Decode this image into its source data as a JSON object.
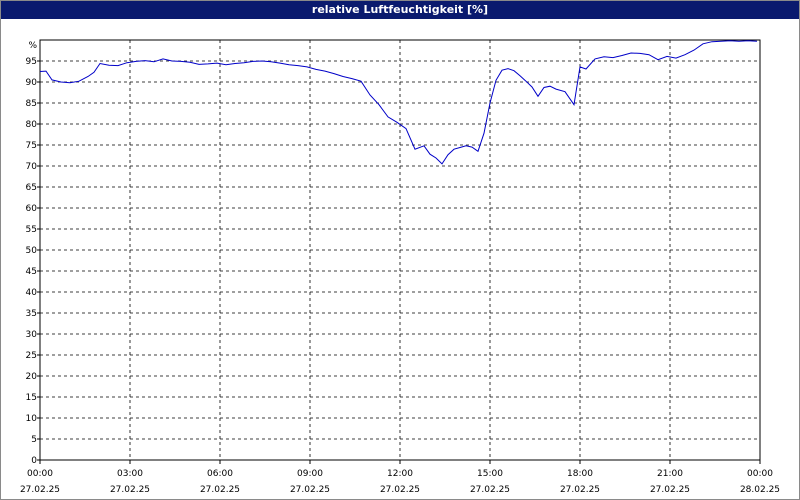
{
  "window": {
    "title": "relative Luftfeuchtigkeit [%]"
  },
  "chart_data": {
    "type": "line",
    "title": "relative Luftfeuchtigkeit [%]",
    "ylabel": "%",
    "ylim": [
      0,
      100
    ],
    "xlim_hours": [
      0,
      24
    ],
    "y_ticks": [
      0,
      5,
      10,
      15,
      20,
      25,
      30,
      35,
      40,
      45,
      50,
      55,
      60,
      65,
      70,
      75,
      80,
      85,
      90,
      95
    ],
    "x_ticks": [
      {
        "hour": 0,
        "time": "00:00",
        "date": "27.02.25"
      },
      {
        "hour": 3,
        "time": "03:00",
        "date": "27.02.25"
      },
      {
        "hour": 6,
        "time": "06:00",
        "date": "27.02.25"
      },
      {
        "hour": 9,
        "time": "09:00",
        "date": "27.02.25"
      },
      {
        "hour": 12,
        "time": "12:00",
        "date": "27.02.25"
      },
      {
        "hour": 15,
        "time": "15:00",
        "date": "27.02.25"
      },
      {
        "hour": 18,
        "time": "18:00",
        "date": "27.02.25"
      },
      {
        "hour": 21,
        "time": "21:00",
        "date": "27.02.25"
      },
      {
        "hour": 24,
        "time": "00:00",
        "date": "28.02.25"
      }
    ],
    "grid": true,
    "line_color": "#0000c8",
    "series": [
      {
        "x": [
          0.0,
          0.2,
          0.4,
          0.7,
          1.0,
          1.3,
          1.6,
          1.8,
          2.0,
          2.3,
          2.6,
          2.9,
          3.2,
          3.5,
          3.8,
          4.1,
          4.4,
          4.7,
          5.0,
          5.3,
          5.6,
          5.9,
          6.2,
          6.5,
          6.8,
          7.1,
          7.4,
          7.7,
          8.0,
          8.3,
          8.6,
          8.9,
          9.2,
          9.5,
          9.8,
          10.1,
          10.4,
          10.7,
          11.0,
          11.3,
          11.6,
          11.9,
          12.2,
          12.5,
          12.8,
          13.0,
          13.2,
          13.4,
          13.6,
          13.8,
          14.0,
          14.2,
          14.4,
          14.6,
          14.8,
          15.0,
          15.2,
          15.4,
          15.6,
          15.8,
          16.0,
          16.2,
          16.4,
          16.6,
          16.8,
          17.0,
          17.2,
          17.5,
          17.8,
          18.0,
          18.2,
          18.5,
          18.8,
          19.1,
          19.4,
          19.7,
          20.0,
          20.3,
          20.6,
          20.9,
          21.2,
          21.5,
          21.8,
          22.1,
          22.4,
          22.7,
          23.0,
          23.3,
          23.6,
          23.9
        ],
        "y": [
          92.5,
          92.6,
          90.5,
          90.0,
          89.8,
          90.2,
          91.3,
          92.3,
          94.4,
          94.0,
          93.9,
          94.6,
          94.9,
          95.1,
          94.8,
          95.5,
          95.0,
          94.9,
          94.7,
          94.2,
          94.3,
          94.5,
          94.1,
          94.4,
          94.6,
          94.9,
          95.0,
          94.8,
          94.5,
          94.1,
          93.9,
          93.6,
          93.0,
          92.6,
          92.0,
          91.3,
          90.8,
          90.2,
          86.9,
          84.6,
          81.7,
          80.4,
          78.9,
          74.0,
          74.8,
          72.8,
          71.9,
          70.5,
          72.7,
          74.0,
          74.4,
          74.8,
          74.5,
          73.5,
          77.8,
          85.0,
          90.4,
          92.8,
          93.2,
          92.7,
          91.5,
          90.2,
          88.8,
          86.6,
          88.7,
          89.0,
          88.3,
          87.7,
          84.6,
          93.6,
          93.1,
          95.5,
          96.0,
          95.8,
          96.3,
          96.9,
          96.8,
          96.5,
          95.3,
          96.1,
          95.7,
          96.5,
          97.6,
          99.1,
          99.6,
          99.7,
          99.8,
          99.7,
          99.8,
          99.7
        ]
      }
    ]
  }
}
